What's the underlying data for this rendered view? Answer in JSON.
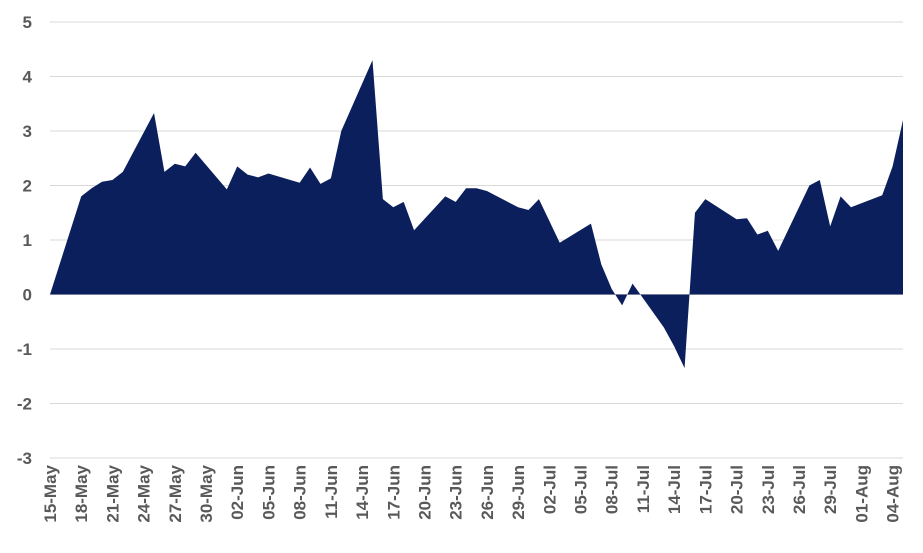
{
  "chart_data": {
    "type": "area",
    "title": "",
    "xlabel": "",
    "ylabel": "",
    "ylim": [
      -3,
      5
    ],
    "yticks": [
      5,
      4,
      3,
      2,
      1,
      0,
      -1,
      -2,
      -3
    ],
    "grid": true,
    "legend": "none",
    "fill_color": "#0b1f5c",
    "x_tick_labels": [
      "15-May",
      "18-May",
      "21-May",
      "24-May",
      "27-May",
      "30-May",
      "02-Jun",
      "05-Jun",
      "08-Jun",
      "11-Jun",
      "14-Jun",
      "17-Jun",
      "20-Jun",
      "23-Jun",
      "26-Jun",
      "29-Jun",
      "02-Jul",
      "05-Jul",
      "08-Jul",
      "11-Jul",
      "14-Jul",
      "17-Jul",
      "20-Jul",
      "23-Jul",
      "26-Jul",
      "29-Jul",
      "01-Aug",
      "04-Aug"
    ],
    "x": [
      "15-May",
      "18-May",
      "19-May",
      "20-May",
      "21-May",
      "22-May",
      "25-May",
      "26-May",
      "27-May",
      "28-May",
      "29-May",
      "01-Jun",
      "02-Jun",
      "03-Jun",
      "04-Jun",
      "05-Jun",
      "08-Jun",
      "09-Jun",
      "10-Jun",
      "11-Jun",
      "12-Jun",
      "15-Jun",
      "16-Jun",
      "17-Jun",
      "18-Jun",
      "19-Jun",
      "22-Jun",
      "23-Jun",
      "24-Jun",
      "25-Jun",
      "26-Jun",
      "29-Jun",
      "30-Jun",
      "01-Jul",
      "02-Jul",
      "03-Jul",
      "06-Jul",
      "07-Jul",
      "08-Jul",
      "09-Jul",
      "10-Jul",
      "13-Jul",
      "14-Jul",
      "15-Jul",
      "16-Jul",
      "17-Jul",
      "20-Jul",
      "21-Jul",
      "22-Jul",
      "23-Jul",
      "24-Jul",
      "27-Jul",
      "28-Jul",
      "29-Jul",
      "30-Jul",
      "31-Jul",
      "03-Aug",
      "04-Aug",
      "05-Aug"
    ],
    "values": [
      0.0,
      1.8,
      1.95,
      2.07,
      2.1,
      2.25,
      3.33,
      2.25,
      2.4,
      2.35,
      2.6,
      1.93,
      2.35,
      2.2,
      2.15,
      2.22,
      2.05,
      2.33,
      2.03,
      2.13,
      3.0,
      4.3,
      1.75,
      1.6,
      1.7,
      1.18,
      1.8,
      1.7,
      1.95,
      1.95,
      1.9,
      1.6,
      1.55,
      1.75,
      1.35,
      0.95,
      1.3,
      0.55,
      0.1,
      -0.2,
      0.2,
      -0.6,
      -0.95,
      -1.35,
      1.5,
      1.75,
      1.38,
      1.4,
      1.1,
      1.17,
      0.8,
      2.0,
      2.1,
      1.25,
      1.8,
      1.6,
      1.82,
      2.35,
      3.2
    ]
  }
}
